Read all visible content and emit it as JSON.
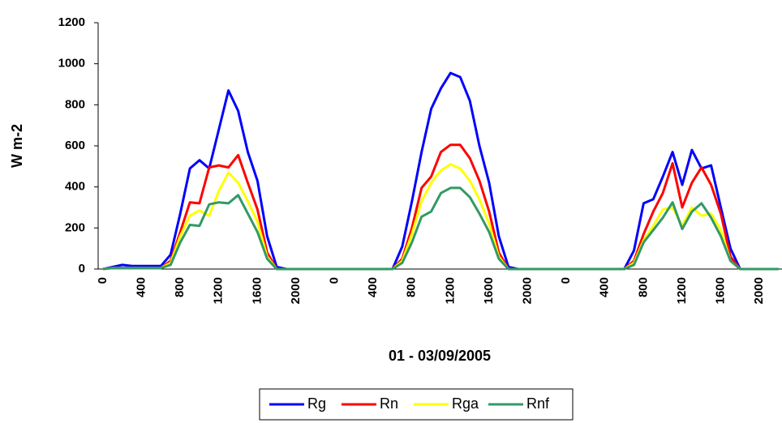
{
  "chart_data": {
    "type": "line",
    "x_label": "01 - 03/09/2005",
    "y_label": "W m-2",
    "categories": [
      "0",
      null,
      null,
      null,
      "400",
      null,
      null,
      null,
      "800",
      null,
      null,
      null,
      "1200",
      null,
      null,
      null,
      "1600",
      null,
      null,
      null,
      "2000",
      null,
      null,
      null,
      "0",
      null,
      null,
      null,
      "400",
      null,
      null,
      null,
      "800",
      null,
      null,
      null,
      "1200",
      null,
      null,
      null,
      "1600",
      null,
      null,
      null,
      "2000",
      null,
      null,
      null,
      "0",
      null,
      null,
      null,
      "400",
      null,
      null,
      null,
      "800",
      null,
      null,
      null,
      "1200",
      null,
      null,
      null,
      "1600",
      null,
      null,
      null,
      "2000",
      null,
      null
    ],
    "series": [
      {
        "name": "Rg",
        "color": "#0000ff",
        "values": [
          0,
          10,
          20,
          15,
          15,
          15,
          15,
          70,
          270,
          490,
          530,
          490,
          680,
          870,
          770,
          570,
          430,
          160,
          10,
          0,
          0,
          0,
          0,
          0,
          0,
          0,
          0,
          0,
          0,
          0,
          0,
          110,
          330,
          570,
          780,
          880,
          955,
          935,
          820,
          600,
          420,
          160,
          10,
          0,
          0,
          0,
          0,
          0,
          0,
          0,
          0,
          0,
          0,
          0,
          0,
          90,
          320,
          340,
          450,
          570,
          410,
          580,
          490,
          505,
          300,
          100,
          0,
          0,
          0,
          0,
          0
        ]
      },
      {
        "name": "Rn",
        "color": "#ff0000",
        "values": [
          0,
          5,
          5,
          5,
          5,
          5,
          5,
          40,
          180,
          325,
          320,
          495,
          505,
          495,
          555,
          420,
          290,
          80,
          0,
          0,
          0,
          0,
          0,
          0,
          0,
          0,
          0,
          0,
          0,
          0,
          0,
          50,
          200,
          395,
          450,
          570,
          605,
          605,
          540,
          430,
          280,
          80,
          0,
          0,
          0,
          0,
          0,
          0,
          0,
          0,
          0,
          0,
          0,
          0,
          0,
          40,
          170,
          280,
          370,
          515,
          300,
          420,
          495,
          410,
          270,
          60,
          0,
          0,
          0,
          0,
          0
        ]
      },
      {
        "name": "Rga",
        "color": "#ffff00",
        "values": [
          0,
          5,
          5,
          5,
          5,
          5,
          5,
          30,
          160,
          260,
          285,
          260,
          380,
          470,
          420,
          330,
          230,
          60,
          0,
          0,
          0,
          0,
          0,
          0,
          0,
          0,
          0,
          0,
          0,
          0,
          0,
          40,
          170,
          330,
          420,
          480,
          510,
          490,
          430,
          340,
          220,
          60,
          0,
          0,
          0,
          0,
          0,
          0,
          0,
          0,
          0,
          0,
          0,
          0,
          0,
          30,
          140,
          210,
          290,
          300,
          210,
          300,
          260,
          270,
          190,
          40,
          0,
          0,
          0,
          0,
          0
        ]
      },
      {
        "name": "Rnf",
        "color": "#339966",
        "values": [
          0,
          5,
          5,
          5,
          5,
          5,
          5,
          20,
          130,
          215,
          210,
          315,
          325,
          320,
          360,
          270,
          180,
          50,
          0,
          0,
          0,
          0,
          0,
          0,
          0,
          0,
          0,
          0,
          0,
          0,
          0,
          30,
          130,
          255,
          280,
          370,
          395,
          395,
          350,
          270,
          180,
          50,
          0,
          0,
          0,
          0,
          0,
          0,
          0,
          0,
          0,
          0,
          0,
          0,
          0,
          20,
          130,
          190,
          250,
          325,
          195,
          280,
          320,
          250,
          160,
          40,
          0,
          0,
          0,
          0,
          0
        ]
      }
    ],
    "ylim": [
      0,
      1200
    ],
    "yticks": [
      0,
      200,
      400,
      600,
      800,
      1000,
      1200
    ],
    "grid": false,
    "legend": "bottom"
  }
}
